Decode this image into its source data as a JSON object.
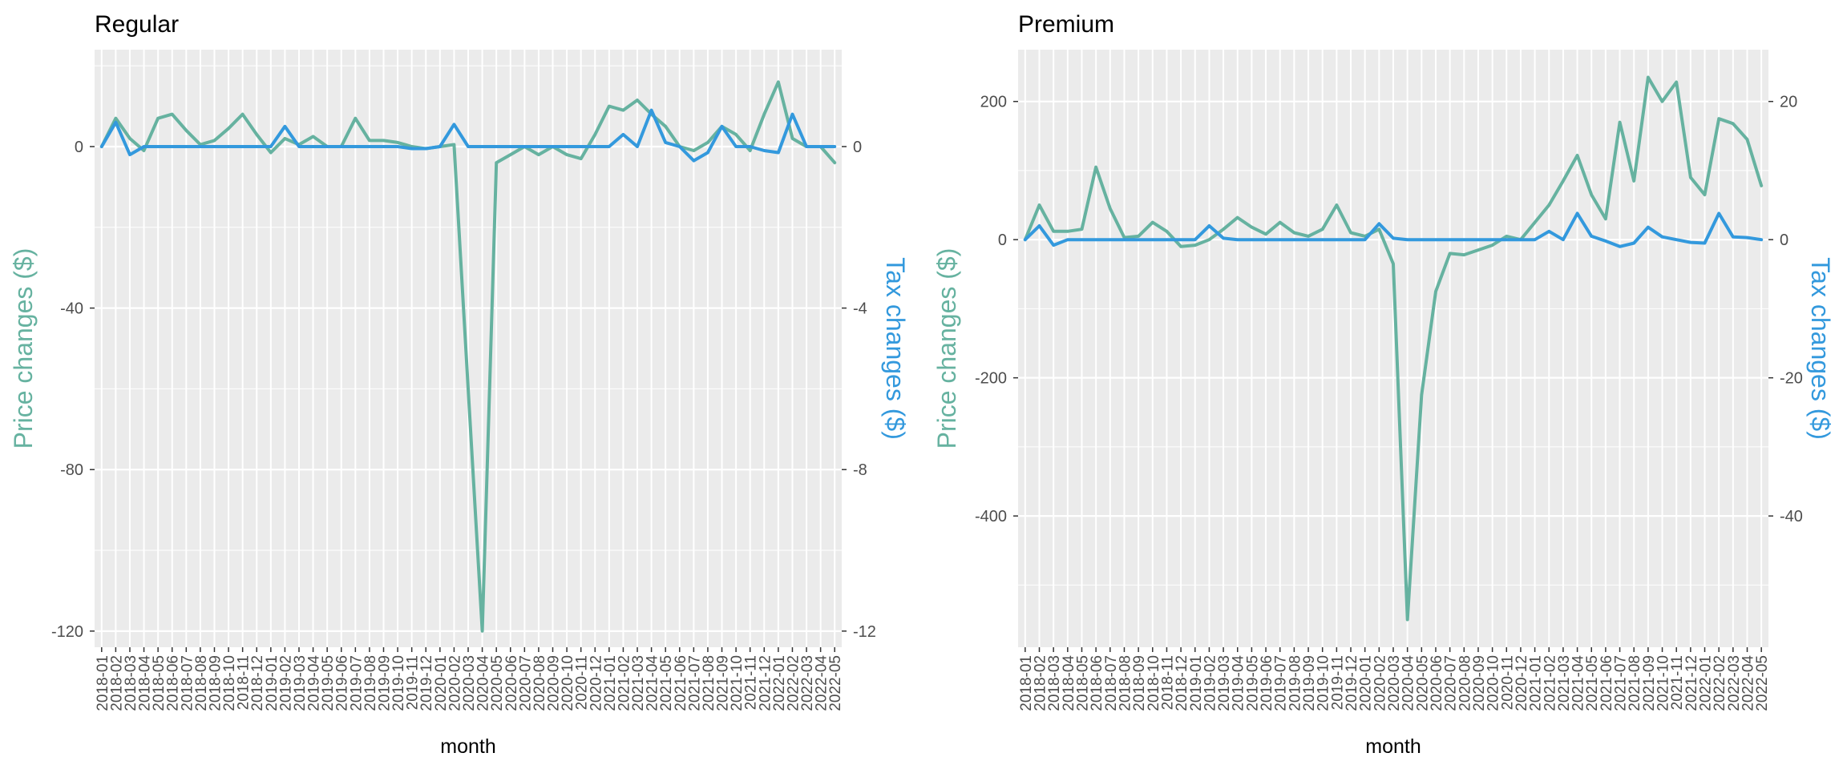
{
  "colors": {
    "price": "#66B2A0",
    "tax": "#3399DD",
    "panel_bg": "#EBEBEB",
    "grid": "#FFFFFF",
    "text": "#4D4D4D",
    "title": "#000000"
  },
  "months": [
    "2018-01",
    "2018-02",
    "2018-03",
    "2018-04",
    "2018-05",
    "2018-06",
    "2018-07",
    "2018-08",
    "2018-09",
    "2018-10",
    "2018-11",
    "2018-12",
    "2019-01",
    "2019-02",
    "2019-03",
    "2019-04",
    "2019-05",
    "2019-06",
    "2019-07",
    "2019-08",
    "2019-09",
    "2019-10",
    "2019-11",
    "2019-12",
    "2020-01",
    "2020-02",
    "2020-03",
    "2020-04",
    "2020-05",
    "2020-06",
    "2020-07",
    "2020-08",
    "2020-09",
    "2020-10",
    "2020-11",
    "2020-12",
    "2021-01",
    "2021-02",
    "2021-03",
    "2021-04",
    "2021-05",
    "2021-06",
    "2021-07",
    "2021-08",
    "2021-09",
    "2021-10",
    "2021-11",
    "2021-12",
    "2022-01",
    "2022-02",
    "2022-03",
    "2022-04",
    "2022-05"
  ],
  "chart_data": [
    {
      "type": "line",
      "title": "Regular",
      "xlabel": "month",
      "ylabel": "Price changes ($)",
      "y2label": "Tax changes ($)",
      "ylim": [
        -124,
        24
      ],
      "yticks": [
        0,
        -40,
        -80,
        -120
      ],
      "y2ticks": [
        0,
        -4,
        -8,
        -12
      ],
      "y2_scale": 10,
      "grid": true,
      "series": [
        {
          "name": "Price changes ($)",
          "axis": "left",
          "values": [
            0,
            7,
            2,
            -1,
            7,
            8,
            4,
            0.5,
            1.5,
            4.5,
            8,
            3,
            -1.5,
            2,
            0.5,
            2.5,
            0,
            0,
            7,
            1.5,
            1.5,
            1,
            0,
            -0.5,
            0,
            0.5,
            -60,
            -120,
            -4,
            -2,
            0,
            -2,
            0,
            -2,
            -3,
            3,
            10,
            9,
            11.5,
            8,
            5,
            0,
            -1,
            1,
            5,
            3,
            -1,
            8,
            16,
            2,
            0,
            0,
            -4
          ]
        },
        {
          "name": "Tax changes ($)",
          "axis": "right",
          "values": [
            0,
            0.6,
            -0.2,
            0,
            0,
            0,
            0,
            0,
            0,
            0,
            0,
            0,
            0,
            0.5,
            0,
            0,
            0,
            0,
            0,
            0,
            0,
            0,
            -0.05,
            -0.05,
            0,
            0.55,
            0,
            0,
            0,
            0,
            0,
            0,
            0,
            0,
            0,
            0,
            0,
            0.3,
            0,
            0.9,
            0.1,
            0,
            -0.35,
            -0.15,
            0.5,
            0,
            0,
            -0.1,
            -0.15,
            0.8,
            0,
            0,
            0
          ]
        }
      ]
    },
    {
      "type": "line",
      "title": "Premium",
      "xlabel": "month",
      "ylabel": "Price changes ($)",
      "y2label": "Tax changes ($)",
      "ylim": [
        -590,
        275
      ],
      "yticks": [
        200,
        0,
        -200,
        -400
      ],
      "y2ticks": [
        20,
        0,
        -20,
        -40
      ],
      "y2_scale": 10,
      "grid": true,
      "series": [
        {
          "name": "Price changes ($)",
          "axis": "left",
          "values": [
            0,
            50,
            12,
            12,
            15,
            105,
            45,
            3,
            5,
            25,
            12,
            -10,
            -8,
            0,
            15,
            32,
            18,
            8,
            25,
            10,
            5,
            15,
            50,
            10,
            5,
            15,
            -35,
            -550,
            -225,
            -75,
            -20,
            -22,
            -15,
            -8,
            5,
            0,
            25,
            50,
            85,
            122,
            65,
            30,
            170,
            85,
            235,
            200,
            228,
            90,
            65,
            175,
            168,
            145,
            78
          ]
        },
        {
          "name": "Tax changes ($)",
          "axis": "right",
          "values": [
            0,
            2,
            -0.8,
            0,
            0,
            0,
            0,
            0,
            0,
            0,
            0,
            0,
            0,
            2,
            0.2,
            0,
            0,
            0,
            0,
            0,
            0,
            0,
            0,
            0,
            0,
            2.3,
            0.2,
            0,
            0,
            0,
            0,
            0,
            0,
            0,
            0,
            0,
            0,
            1.2,
            0,
            3.8,
            0.5,
            -0.2,
            -1,
            -0.5,
            1.8,
            0.4,
            0,
            -0.4,
            -0.5,
            3.8,
            0.4,
            0.3,
            0
          ]
        }
      ]
    }
  ]
}
